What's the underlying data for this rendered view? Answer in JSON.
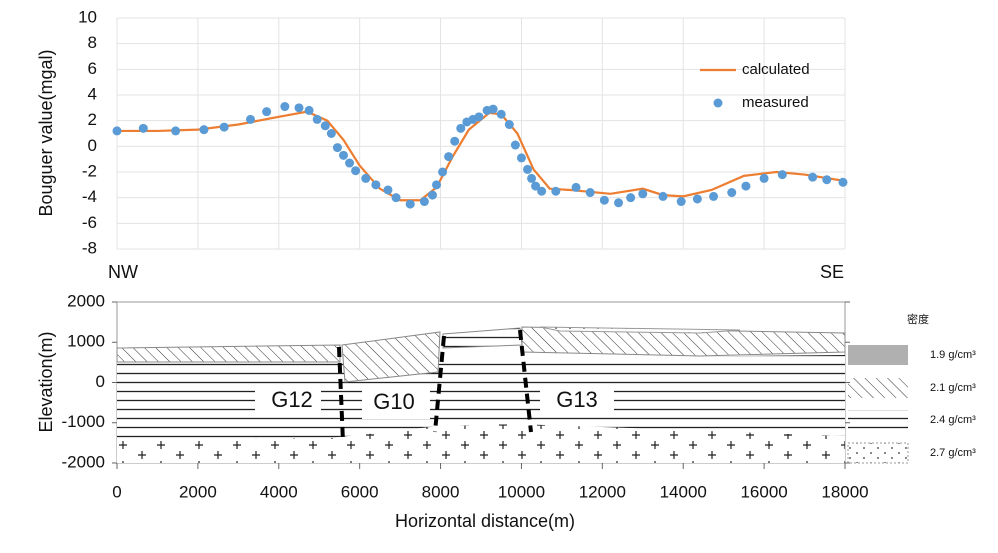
{
  "chart_data": [
    {
      "type": "line",
      "ylabel": "Bouguer value(mgal)",
      "left_label": "NW",
      "right_label": "SE",
      "xlim": [
        0,
        18000
      ],
      "xticks": [
        0,
        2000,
        4000,
        6000,
        8000,
        10000,
        12000,
        14000,
        16000,
        18000
      ],
      "ylim": [
        -8,
        10
      ],
      "yticks": [
        -8,
        -6,
        -4,
        -2,
        0,
        2,
        4,
        6,
        8,
        10
      ],
      "grid": true,
      "legend": "upper right",
      "series": [
        {
          "name": "calculated",
          "type": "line",
          "color": "#ed7d31",
          "x": [
            0,
            1000,
            2000,
            3000,
            4000,
            4700,
            5200,
            5600,
            6000,
            6500,
            7000,
            7500,
            7900,
            8300,
            8700,
            9200,
            9500,
            9900,
            10300,
            10700,
            11200,
            12200,
            13000,
            13500,
            14000,
            14700,
            15500,
            16300,
            17000,
            18000
          ],
          "values": [
            1.2,
            1.2,
            1.3,
            1.7,
            2.3,
            2.7,
            2.0,
            0.5,
            -1.5,
            -3.3,
            -4.2,
            -4.2,
            -3.2,
            -0.8,
            1.3,
            2.6,
            2.5,
            1.0,
            -1.8,
            -3.3,
            -3.4,
            -3.7,
            -3.3,
            -3.8,
            -3.9,
            -3.4,
            -2.3,
            -2.0,
            -2.2,
            -2.7
          ]
        },
        {
          "name": "measured",
          "type": "scatter",
          "color": "#5b9bd5",
          "x": [
            0,
            650,
            1450,
            2150,
            2650,
            3300,
            3700,
            4150,
            4500,
            4750,
            4950,
            5150,
            5300,
            5450,
            5600,
            5750,
            5900,
            6150,
            6400,
            6700,
            6900,
            7250,
            7600,
            7800,
            7900,
            8050,
            8200,
            8350,
            8500,
            8650,
            8800,
            8950,
            9150,
            9300,
            9500,
            9700,
            9850,
            10000,
            10150,
            10250,
            10350,
            10500,
            10850,
            11350,
            11700,
            12050,
            12400,
            12700,
            13000,
            13500,
            13950,
            14350,
            14750,
            15200,
            15550,
            16000,
            16450,
            17200,
            17550,
            17950
          ],
          "values": [
            1.2,
            1.4,
            1.2,
            1.3,
            1.5,
            2.1,
            2.7,
            3.1,
            3.0,
            2.8,
            2.1,
            1.6,
            1.0,
            -0.1,
            -0.7,
            -1.3,
            -1.9,
            -2.5,
            -3.0,
            -3.4,
            -4.0,
            -4.5,
            -4.3,
            -3.8,
            -3.0,
            -2.0,
            -0.8,
            0.4,
            1.4,
            1.9,
            2.1,
            2.3,
            2.8,
            2.9,
            2.5,
            1.7,
            0.1,
            -0.9,
            -1.8,
            -2.5,
            -3.1,
            -3.5,
            -3.5,
            -3.2,
            -3.6,
            -4.2,
            -4.4,
            -4.0,
            -3.7,
            -3.9,
            -4.3,
            -4.1,
            -3.9,
            -3.6,
            -3.1,
            -2.5,
            -2.2,
            -2.4,
            -2.6,
            -2.8
          ]
        }
      ]
    },
    {
      "type": "section",
      "xlabel": "Horizontal distance(m)",
      "ylabel": "Elevation(m)",
      "xlim": [
        0,
        18000
      ],
      "xticks": [
        0,
        2000,
        4000,
        6000,
        8000,
        10000,
        12000,
        14000,
        16000,
        18000
      ],
      "ylim": [
        -2000,
        2000
      ],
      "yticks": [
        -2000,
        -1000,
        0,
        1000,
        2000
      ],
      "blocks": [
        "G12",
        "G10",
        "G13"
      ],
      "legend_title": "密度",
      "legend": [
        "1.9 g/cm³",
        "2.1 g/cm³",
        "2.4 g/cm³",
        "2.7 g/cm³"
      ]
    }
  ]
}
